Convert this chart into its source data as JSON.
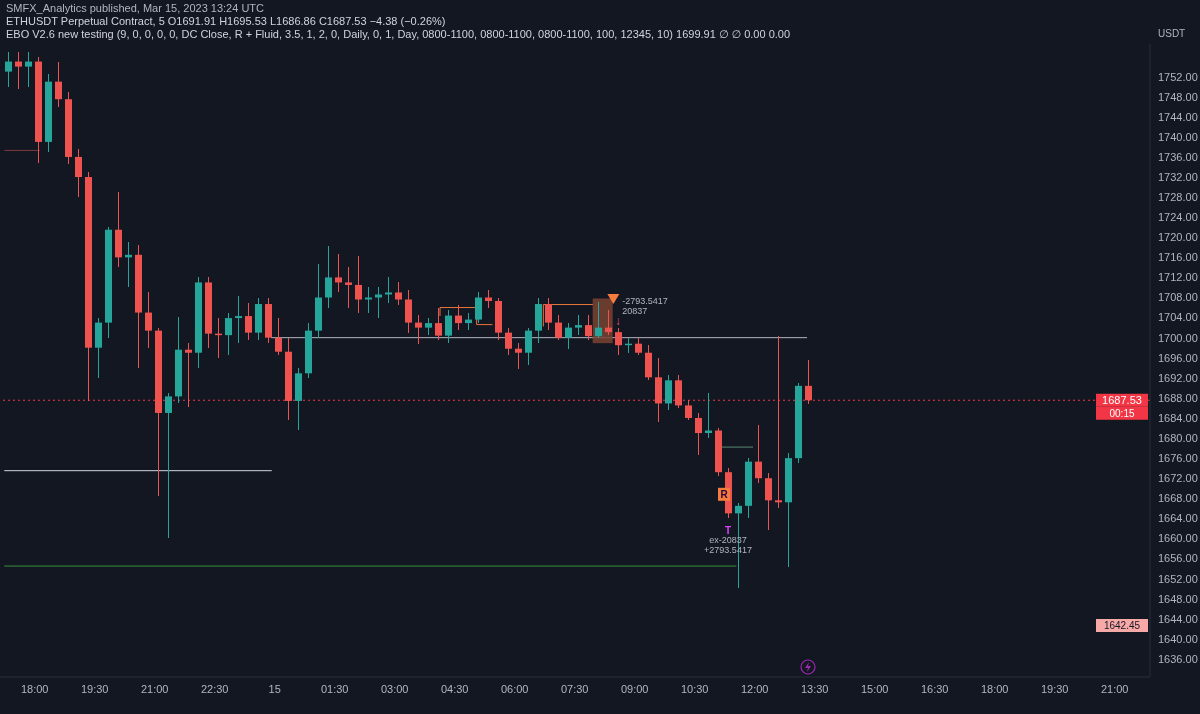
{
  "chart_data": {
    "type": "candlestick",
    "title": "ETHUSDT Perpetual Contract, 5 O1691.91 H1695.53 L1686.86 C1687.53 −4.38 (−0.26%)",
    "subtitle": "EBO V2.6 new testing (9, 0, 0, 0, 0, DC Close, R + Fluid, 3.5, 1, 2, 0, Daily, 0, 1, Day, 0800-1100, 0800-1100, 0800-1100, 100, 12345, 10) 1699.91 ∅ ∅ 0.00 0.00",
    "ylabel": "USDT",
    "annotations": [
      "SMFX_Analytics published, Mar 15, 2023 13:24 UTC",
      {
        "text": "00:15",
        "y": 1687.53
      },
      "1642.45",
      {
        "text": "-2793.5417",
        "x": "2023-03-15T08:28",
        "y": 1707.7
      },
      {
        "text": "20837",
        "x": "2023-03-15T08:28",
        "y": 1707.7
      },
      {
        "text": "↓",
        "x": "2023-03-15T08:35",
        "y": 1702
      },
      {
        "text": "R",
        "x": "2023-03-15T11:14",
        "y": 1667.6
      },
      {
        "text": "T",
        "x": "2023-03-15T11:20",
        "y": 1664
      },
      {
        "text": "ex-20837",
        "x": "2023-03-15T11:20",
        "y": 1664
      },
      {
        "text": "+2793.5417",
        "x": "2023-03-15T11:20",
        "y": 1664
      }
    ],
    "x": [
      "2023-03-14T17:20",
      "2023-03-14T17:35",
      "2023-03-14T17:50",
      "2023-03-14T18:05",
      "2023-03-14T18:20",
      "2023-03-14T18:35",
      "2023-03-14T18:50",
      "2023-03-14T19:05",
      "2023-03-14T19:20",
      "2023-03-14T19:35",
      "2023-03-14T19:50",
      "2023-03-14T20:05",
      "2023-03-14T20:20",
      "2023-03-14T20:35",
      "2023-03-14T20:50",
      "2023-03-14T21:05",
      "2023-03-14T21:20",
      "2023-03-14T21:35",
      "2023-03-14T21:50",
      "2023-03-14T22:05",
      "2023-03-14T22:20",
      "2023-03-14T22:35",
      "2023-03-14T22:50",
      "2023-03-14T23:05",
      "2023-03-14T23:20",
      "2023-03-14T23:35",
      "2023-03-14T23:50",
      "2023-03-15T00:05",
      "2023-03-15T00:20",
      "2023-03-15T00:35",
      "2023-03-15T00:50",
      "2023-03-15T01:05",
      "2023-03-15T01:20",
      "2023-03-15T01:35",
      "2023-03-15T01:50",
      "2023-03-15T02:05",
      "2023-03-15T02:20",
      "2023-03-15T02:35",
      "2023-03-15T02:50",
      "2023-03-15T03:05",
      "2023-03-15T03:20",
      "2023-03-15T03:35",
      "2023-03-15T03:50",
      "2023-03-15T04:05",
      "2023-03-15T04:20",
      "2023-03-15T04:35",
      "2023-03-15T04:50",
      "2023-03-15T05:05",
      "2023-03-15T05:20",
      "2023-03-15T05:35",
      "2023-03-15T05:50",
      "2023-03-15T06:05",
      "2023-03-15T06:20",
      "2023-03-15T06:35",
      "2023-03-15T06:50",
      "2023-03-15T07:05",
      "2023-03-15T07:20",
      "2023-03-15T07:35",
      "2023-03-15T07:50",
      "2023-03-15T08:05",
      "2023-03-15T08:20",
      "2023-03-15T08:35",
      "2023-03-15T08:50",
      "2023-03-15T09:05",
      "2023-03-15T09:20",
      "2023-03-15T09:35",
      "2023-03-15T09:50",
      "2023-03-15T10:05",
      "2023-03-15T10:20",
      "2023-03-15T10:35",
      "2023-03-15T10:50",
      "2023-03-15T11:05",
      "2023-03-15T11:20",
      "2023-03-15T11:35",
      "2023-03-15T11:50",
      "2023-03-15T12:05",
      "2023-03-15T12:20",
      "2023-03-15T12:35",
      "2023-03-15T12:50",
      "2023-03-15T13:05",
      "2023-03-15T13:20"
    ],
    "ohlc": [
      [
        1753,
        1757,
        1750,
        1755
      ],
      [
        1755,
        1757,
        1749.5,
        1754
      ],
      [
        1754,
        1757,
        1750,
        1755
      ],
      [
        1755,
        1756,
        1734.7,
        1739
      ],
      [
        1739,
        1752.5,
        1737,
        1751
      ],
      [
        1751,
        1755,
        1746,
        1747.5
      ],
      [
        1747.5,
        1749,
        1734.5,
        1736
      ],
      [
        1736,
        1737.5,
        1728,
        1732
      ],
      [
        1732,
        1733,
        1687.4,
        1698
      ],
      [
        1698,
        1704,
        1692,
        1703
      ],
      [
        1703,
        1722,
        1700,
        1721.5
      ],
      [
        1721.5,
        1729,
        1714,
        1716
      ],
      [
        1716,
        1719,
        1710,
        1716.5
      ],
      [
        1716.5,
        1718.4,
        1694,
        1705
      ],
      [
        1705,
        1709,
        1698,
        1701.4
      ],
      [
        1701.4,
        1702,
        1668.4,
        1685
      ],
      [
        1685,
        1689,
        1660,
        1688.3
      ],
      [
        1688.3,
        1704.2,
        1687,
        1697.6
      ],
      [
        1697.6,
        1699,
        1686.2,
        1697
      ],
      [
        1697,
        1712,
        1694,
        1711
      ],
      [
        1711,
        1712,
        1698,
        1700.8
      ],
      [
        1700.8,
        1704,
        1696,
        1700.5
      ],
      [
        1700.5,
        1705,
        1696.5,
        1703.9
      ],
      [
        1703.9,
        1708.2,
        1699,
        1704.3
      ],
      [
        1704.3,
        1707,
        1699.5,
        1701
      ],
      [
        1701,
        1708,
        1699.5,
        1706.7
      ],
      [
        1706.7,
        1708,
        1699,
        1700
      ],
      [
        1700,
        1704,
        1696.5,
        1697.2
      ],
      [
        1697.2,
        1700,
        1683.6,
        1687.4
      ],
      [
        1687.4,
        1694,
        1681.7,
        1692.9
      ],
      [
        1692.9,
        1703,
        1692,
        1701.4
      ],
      [
        1701.4,
        1714.7,
        1700,
        1708
      ],
      [
        1708,
        1718.3,
        1706,
        1712
      ],
      [
        1712,
        1716.7,
        1709,
        1711
      ],
      [
        1711,
        1714,
        1706,
        1710.5
      ],
      [
        1710.5,
        1716.2,
        1705,
        1707.6
      ],
      [
        1707.6,
        1710,
        1705,
        1708
      ],
      [
        1708,
        1710,
        1704,
        1708.6
      ],
      [
        1708.6,
        1712,
        1707,
        1709
      ],
      [
        1709,
        1711,
        1706.5,
        1707.6
      ],
      [
        1707.6,
        1709.5,
        1701,
        1703
      ],
      [
        1703,
        1704.5,
        1698.7,
        1702
      ],
      [
        1702,
        1704,
        1700.5,
        1702.9
      ],
      [
        1702.9,
        1706,
        1699.5,
        1700.4
      ],
      [
        1700.4,
        1705.5,
        1699,
        1704.4
      ],
      [
        1704.4,
        1706.5,
        1701.5,
        1702.9
      ],
      [
        1702.9,
        1705,
        1701.5,
        1703.6
      ],
      [
        1703.6,
        1709,
        1703,
        1708
      ],
      [
        1708,
        1709.5,
        1706,
        1707.3
      ],
      [
        1707.3,
        1708,
        1699.5,
        1701
      ],
      [
        1701,
        1702,
        1696.5,
        1697.8
      ],
      [
        1697.8,
        1699,
        1693.8,
        1697
      ],
      [
        1697,
        1702,
        1694.5,
        1701.4
      ],
      [
        1701.4,
        1708,
        1699,
        1706.7
      ],
      [
        1706.7,
        1708,
        1701.5,
        1703
      ],
      [
        1703,
        1704.5,
        1699.5,
        1700
      ],
      [
        1700,
        1703,
        1697.7,
        1702
      ],
      [
        1702,
        1704.5,
        1700.5,
        1702.5
      ],
      [
        1702.5,
        1704.5,
        1699.5,
        1700.3
      ],
      [
        1700.3,
        1707.1,
        1700,
        1702
      ],
      [
        1702,
        1705.5,
        1700.5,
        1701.1
      ],
      [
        1701.1,
        1702,
        1696.5,
        1698.5
      ],
      [
        1698.5,
        1700,
        1697,
        1698.8
      ],
      [
        1698.8,
        1700,
        1696.5,
        1697
      ],
      [
        1697,
        1698.5,
        1691.5,
        1692.1
      ],
      [
        1692.1,
        1696,
        1683.1,
        1686.9
      ],
      [
        1686.9,
        1692.5,
        1685.5,
        1691.5
      ],
      [
        1691.5,
        1692.5,
        1686,
        1686.5
      ],
      [
        1686.5,
        1687.5,
        1683.5,
        1684
      ],
      [
        1684,
        1685,
        1676.6,
        1681
      ],
      [
        1681,
        1689,
        1680,
        1681.5
      ],
      [
        1681.5,
        1682,
        1672.5,
        1673.2
      ],
      [
        1673.2,
        1674,
        1664,
        1665
      ],
      [
        1665,
        1667,
        1650.2,
        1666.5
      ],
      [
        1666.5,
        1676,
        1664,
        1675.3
      ],
      [
        1675.3,
        1682.6,
        1671,
        1672
      ],
      [
        1672,
        1673,
        1661.6,
        1667.6
      ],
      [
        1667.6,
        1700.3,
        1666,
        1667.2
      ],
      [
        1667.2,
        1677,
        1654.3,
        1676
      ],
      [
        1676,
        1691,
        1675,
        1690.4
      ],
      [
        1690.4,
        1695.53,
        1686.86,
        1687.53
      ]
    ],
    "colors": [
      "#26a69a",
      "#ef5350",
      "#26a69a",
      "#ef5350",
      "#26a69a",
      "#ef5350",
      "#ef5350",
      "#ef5350",
      "#ef5350",
      "#26a69a",
      "#26a69a",
      "#ef5350",
      "#26a69a",
      "#ef5350",
      "#ef5350",
      "#ef5350",
      "#26a69a",
      "#26a69a",
      "#ef5350",
      "#26a69a",
      "#ef5350",
      "#ef5350",
      "#26a69a",
      "#26a69a",
      "#ef5350",
      "#26a69a",
      "#ef5350",
      "#ef5350",
      "#ef5350",
      "#26a69a",
      "#26a69a",
      "#26a69a",
      "#26a69a",
      "#ef5350",
      "#ef5350",
      "#ef5350",
      "#26a69a",
      "#26a69a",
      "#26a69a",
      "#ef5350",
      "#ef5350",
      "#ef5350",
      "#26a69a",
      "#ef5350",
      "#26a69a",
      "#ef5350",
      "#26a69a",
      "#26a69a",
      "#ef5350",
      "#ef5350",
      "#ef5350",
      "#ef5350",
      "#26a69a",
      "#26a69a",
      "#ef5350",
      "#ef5350",
      "#26a69a",
      "#26a69a",
      "#ef5350",
      "#26a69a",
      "#ef5350",
      "#ef5350",
      "#26a69a",
      "#ef5350",
      "#ef5350",
      "#ef5350",
      "#26a69a",
      "#ef5350",
      "#ef5350",
      "#ef5350",
      "#26a69a",
      "#ef5350",
      "#ef5350",
      "#26a69a",
      "#26a69a",
      "#ef5350",
      "#ef5350",
      "#ef5350",
      "#26a69a",
      "#26a69a",
      "#ef5350"
    ],
    "series": [
      {
        "type": "bar",
        "x": [
          "2023-03-15T08:12"
        ],
        "values": [
          8.9
        ],
        "base": [
          1698.9
        ],
        "color": "#7a4332"
      },
      {
        "type": "line",
        "x": [
          "2023-03-14T17:15",
          "2023-03-14T18:07"
        ],
        "values": [
          1737.3,
          1737.3
        ],
        "color": "#7f3b3f"
      },
      {
        "type": "line",
        "x": [
          "2023-03-14T17:15",
          "2023-03-14T23:55"
        ],
        "values": [
          1673.5,
          1673.5
        ],
        "color": "#d1d4dc"
      },
      {
        "type": "line",
        "x": [
          "2023-03-14T23:55",
          "2023-03-15T13:18"
        ],
        "values": [
          1700,
          1700
        ],
        "color": "#b2b5be"
      },
      {
        "type": "line",
        "x": [
          "2023-03-14T17:15",
          "2023-03-15T11:32"
        ],
        "values": [
          1654.5,
          1654.5
        ],
        "color": "#388e3c"
      },
      {
        "type": "line",
        "x": [
          "2023-03-15T11:10",
          "2023-03-15T11:57"
        ],
        "values": [
          1678.2,
          1678.2
        ],
        "color": "#5b8a72"
      },
      {
        "type": "line",
        "x": [
          "2023-03-15T04:08",
          "2023-03-15T04:08",
          "2023-03-15T05:03",
          "2023-03-15T05:03",
          "2023-03-15T05:26"
        ],
        "values": [
          1704.4,
          1706,
          1706,
          1702.6,
          1702.6
        ],
        "color": "#e8773a"
      },
      {
        "type": "line",
        "x": [
          "2023-03-15T06:43",
          "2023-03-15T06:43",
          "2023-03-15T07:57"
        ],
        "values": [
          1702.3,
          1706.6,
          1706.6
        ],
        "color": "#e8773a"
      },
      {
        "type": "scatter",
        "x": [
          "2023-03-15T08:28"
        ],
        "values": [
          1707.7
        ],
        "color": "#f57c3c",
        "marker": "triangle"
      }
    ],
    "ref_lines": [
      {
        "axis": "y",
        "value": 1687.53,
        "label": "1687.53",
        "color": "#f23645",
        "line_style": "dotted"
      }
    ],
    "xlim": [
      "2023-03-14T17:08",
      "2023-03-15T21:53"
    ],
    "ylim": [
      1632.4,
      1758.5
    ],
    "xticks": [
      {
        "value": "2023-03-14T18:00",
        "label": "18:00"
      },
      {
        "value": "2023-03-14T19:30",
        "label": "19:30"
      },
      {
        "value": "2023-03-14T21:00",
        "label": "21:00"
      },
      {
        "value": "2023-03-14T22:30",
        "label": "22:30"
      },
      {
        "value": "2023-03-15T00:00",
        "label": "15"
      },
      {
        "value": "2023-03-15T01:30",
        "label": "01:30"
      },
      {
        "value": "2023-03-15T03:00",
        "label": "03:00"
      },
      {
        "value": "2023-03-15T04:30",
        "label": "04:30"
      },
      {
        "value": "2023-03-15T06:00",
        "label": "06:00"
      },
      {
        "value": "2023-03-15T07:30",
        "label": "07:30"
      },
      {
        "value": "2023-03-15T09:00",
        "label": "09:00"
      },
      {
        "value": "2023-03-15T10:30",
        "label": "10:30"
      },
      {
        "value": "2023-03-15T12:00",
        "label": "12:00"
      },
      {
        "value": "2023-03-15T13:30",
        "label": "13:30"
      },
      {
        "value": "2023-03-15T15:00",
        "label": "15:00"
      },
      {
        "value": "2023-03-15T16:30",
        "label": "16:30"
      },
      {
        "value": "2023-03-15T18:00",
        "label": "18:00"
      },
      {
        "value": "2023-03-15T19:30",
        "label": "19:30"
      },
      {
        "value": "2023-03-15T21:00",
        "label": "21:00"
      }
    ],
    "yticks": [
      {
        "value": 1636,
        "label": "1636.00"
      },
      {
        "value": 1640,
        "label": "1640.00"
      },
      {
        "value": 1644,
        "label": "1644.00"
      },
      {
        "value": 1648,
        "label": "1648.00"
      },
      {
        "value": 1652,
        "label": "1652.00"
      },
      {
        "value": 1656,
        "label": "1656.00"
      },
      {
        "value": 1660,
        "label": "1660.00"
      },
      {
        "value": 1664,
        "label": "1664.00"
      },
      {
        "value": 1668,
        "label": "1668.00"
      },
      {
        "value": 1672,
        "label": "1672.00"
      },
      {
        "value": 1676,
        "label": "1676.00"
      },
      {
        "value": 1680,
        "label": "1680.00"
      },
      {
        "value": 1684,
        "label": "1684.00"
      },
      {
        "value": 1688,
        "label": "1688.00"
      },
      {
        "value": 1692,
        "label": "1692.00"
      },
      {
        "value": 1696,
        "label": "1696.00"
      },
      {
        "value": 1700,
        "label": "1700.00"
      },
      {
        "value": 1704,
        "label": "1704.00"
      },
      {
        "value": 1708,
        "label": "1708.00"
      },
      {
        "value": 1712,
        "label": "1712.00"
      },
      {
        "value": 1716,
        "label": "1716.00"
      },
      {
        "value": 1720,
        "label": "1720.00"
      },
      {
        "value": 1724,
        "label": "1724.00"
      },
      {
        "value": 1728,
        "label": "1728.00"
      },
      {
        "value": 1732,
        "label": "1732.00"
      },
      {
        "value": 1736,
        "label": "1736.00"
      },
      {
        "value": 1740,
        "label": "1740.00"
      },
      {
        "value": 1744,
        "label": "1744.00"
      },
      {
        "value": 1748,
        "label": "1748.00"
      },
      {
        "value": 1752,
        "label": "1752.00"
      }
    ]
  }
}
